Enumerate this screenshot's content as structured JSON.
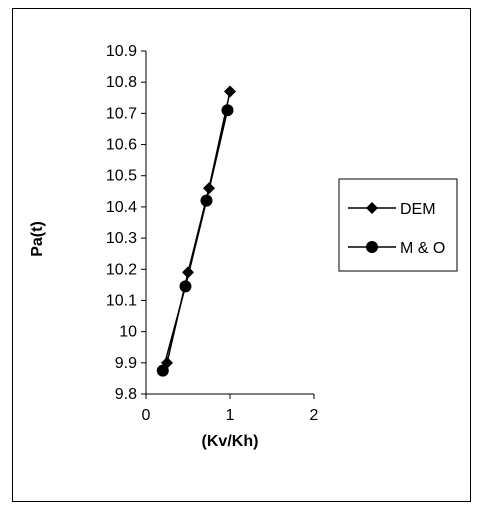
{
  "chart_data": {
    "type": "line",
    "xlabel": "(Kv/Kh)",
    "ylabel": "Pa(t)",
    "xlim": [
      0,
      2
    ],
    "ylim": [
      9.8,
      10.9
    ],
    "x_ticks": [
      "0",
      "1",
      "2"
    ],
    "y_ticks": [
      "9.8",
      "9.9",
      "10",
      "10.1",
      "10.2",
      "10.3",
      "10.4",
      "10.5",
      "10.6",
      "10.7",
      "10.8",
      "10.9"
    ],
    "legend_position": "right",
    "grid": false,
    "series": [
      {
        "name": "DEM",
        "marker": "diamond",
        "color": "#000000",
        "points": [
          [
            0.25,
            9.9
          ],
          [
            0.5,
            10.19
          ],
          [
            0.75,
            10.46
          ],
          [
            1.0,
            10.77
          ]
        ]
      },
      {
        "name": "M & O",
        "marker": "circle",
        "color": "#000000",
        "points": [
          [
            0.2,
            9.875
          ],
          [
            0.47,
            10.145
          ],
          [
            0.72,
            10.42
          ],
          [
            0.97,
            10.71
          ]
        ]
      }
    ]
  }
}
